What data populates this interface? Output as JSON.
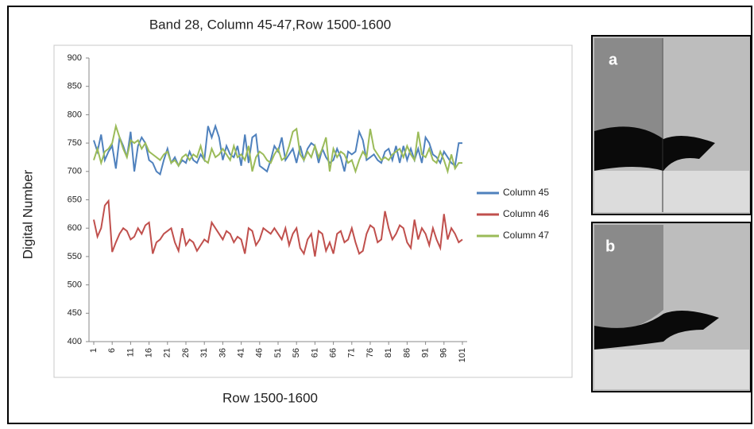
{
  "chart_data": {
    "type": "line",
    "title": "Band 28,  Column 45-47,Row 1500-1600",
    "x_label": "Row 1500-1600",
    "y_label": "Digital Number",
    "x": [
      1,
      2,
      3,
      4,
      5,
      6,
      7,
      8,
      9,
      10,
      11,
      12,
      13,
      14,
      15,
      16,
      17,
      18,
      19,
      20,
      21,
      22,
      23,
      24,
      25,
      26,
      27,
      28,
      29,
      30,
      31,
      32,
      33,
      34,
      35,
      36,
      37,
      38,
      39,
      40,
      41,
      42,
      43,
      44,
      45,
      46,
      47,
      48,
      49,
      50,
      51,
      52,
      53,
      54,
      55,
      56,
      57,
      58,
      59,
      60,
      61,
      62,
      63,
      64,
      65,
      66,
      67,
      68,
      69,
      70,
      71,
      72,
      73,
      74,
      75,
      76,
      77,
      78,
      79,
      80,
      81,
      82,
      83,
      84,
      85,
      86,
      87,
      88,
      89,
      90,
      91,
      92,
      93,
      94,
      95,
      96,
      97,
      98,
      99,
      100,
      101
    ],
    "xlim": [
      1,
      101
    ],
    "xticks": [
      1,
      6,
      11,
      16,
      21,
      26,
      31,
      36,
      41,
      46,
      51,
      56,
      61,
      66,
      71,
      76,
      81,
      86,
      91,
      96,
      101
    ],
    "ylim": [
      400,
      900
    ],
    "yticks": [
      400,
      450,
      500,
      550,
      600,
      650,
      700,
      750,
      800,
      850,
      900
    ],
    "grid": false,
    "legend": "right",
    "series": [
      {
        "name": "Column 45",
        "color": "#4f81bd",
        "values": [
          755,
          735,
          765,
          720,
          735,
          745,
          705,
          760,
          745,
          725,
          770,
          700,
          745,
          760,
          750,
          720,
          715,
          700,
          695,
          720,
          740,
          715,
          725,
          710,
          720,
          715,
          735,
          720,
          715,
          730,
          720,
          780,
          760,
          780,
          760,
          720,
          745,
          730,
          725,
          745,
          710,
          765,
          715,
          760,
          765,
          710,
          705,
          700,
          720,
          745,
          735,
          760,
          720,
          730,
          740,
          715,
          745,
          720,
          740,
          750,
          745,
          715,
          740,
          725,
          715,
          720,
          740,
          725,
          700,
          735,
          730,
          735,
          770,
          755,
          720,
          725,
          730,
          720,
          715,
          735,
          740,
          720,
          745,
          715,
          745,
          720,
          740,
          720,
          740,
          715,
          760,
          750,
          730,
          725,
          715,
          735,
          725,
          715,
          710,
          750,
          750
        ]
      },
      {
        "name": "Column 46",
        "color": "#c0504d",
        "values": [
          615,
          585,
          600,
          640,
          648,
          558,
          575,
          590,
          600,
          595,
          580,
          585,
          600,
          590,
          605,
          610,
          555,
          575,
          580,
          590,
          595,
          600,
          575,
          560,
          600,
          570,
          580,
          575,
          560,
          570,
          580,
          575,
          610,
          600,
          590,
          580,
          595,
          590,
          575,
          585,
          580,
          555,
          600,
          595,
          570,
          580,
          600,
          595,
          590,
          600,
          590,
          580,
          600,
          570,
          590,
          600,
          565,
          555,
          580,
          590,
          550,
          595,
          590,
          560,
          575,
          555,
          590,
          595,
          575,
          580,
          600,
          575,
          555,
          560,
          590,
          605,
          600,
          575,
          580,
          630,
          600,
          580,
          590,
          605,
          600,
          575,
          565,
          615,
          580,
          600,
          590,
          570,
          600,
          580,
          565,
          625,
          580,
          600,
          590,
          575,
          580
        ]
      },
      {
        "name": "Column 47",
        "color": "#9bbb59",
        "values": [
          720,
          740,
          715,
          735,
          740,
          750,
          780,
          760,
          740,
          725,
          755,
          750,
          755,
          740,
          750,
          735,
          730,
          725,
          720,
          730,
          735,
          715,
          720,
          710,
          725,
          730,
          720,
          730,
          725,
          745,
          720,
          715,
          740,
          725,
          730,
          740,
          730,
          720,
          745,
          725,
          730,
          720,
          745,
          700,
          725,
          735,
          730,
          720,
          715,
          730,
          740,
          720,
          725,
          745,
          770,
          775,
          730,
          720,
          735,
          725,
          745,
          725,
          740,
          760,
          700,
          740,
          725,
          735,
          730,
          715,
          720,
          700,
          720,
          735,
          725,
          775,
          740,
          730,
          720,
          725,
          720,
          730,
          735,
          740,
          725,
          745,
          730,
          720,
          770,
          730,
          725,
          740,
          720,
          715,
          735,
          720,
          700,
          730,
          705,
          715,
          715
        ]
      }
    ]
  },
  "image_labels": [
    "a",
    "b"
  ]
}
